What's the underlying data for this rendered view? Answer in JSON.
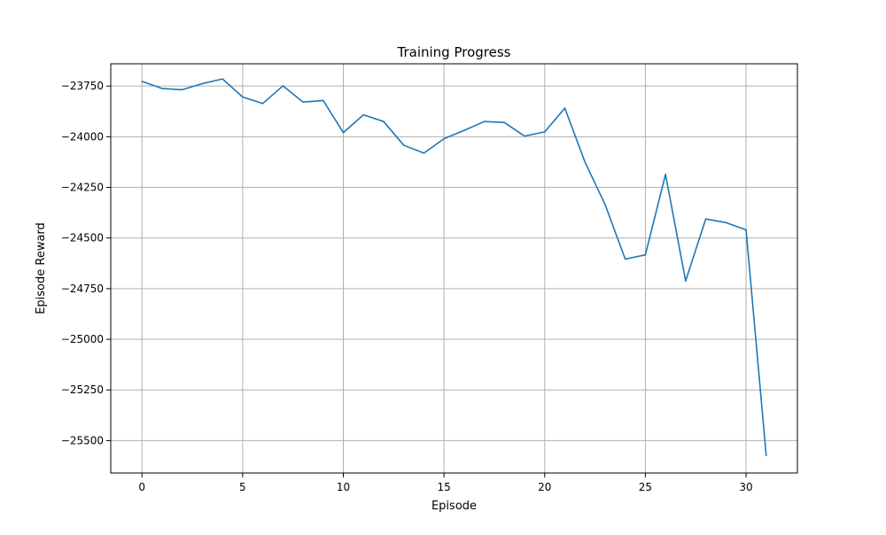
{
  "chart_data": {
    "type": "line",
    "title": "Training Progress",
    "xlabel": "Episode",
    "ylabel": "Episode Reward",
    "xlim": [
      -1.55,
      32.55
    ],
    "ylim": [
      -25660,
      -23640
    ],
    "xticks": [
      0,
      5,
      10,
      15,
      20,
      25,
      30
    ],
    "yticks": [
      -25500,
      -25250,
      -25000,
      -24750,
      -24500,
      -24250,
      -24000,
      -23750
    ],
    "grid": true,
    "line_color": "#1f77b4",
    "series": [
      {
        "x": [
          0,
          1,
          2,
          3,
          4,
          5,
          6,
          7,
          8,
          9,
          10,
          11,
          12,
          13,
          14,
          15,
          16,
          17,
          18,
          19,
          20,
          21,
          22,
          23,
          24,
          25,
          26,
          27,
          28,
          29,
          30,
          31
        ],
        "values": [
          -23727,
          -23762,
          -23768,
          -23738,
          -23715,
          -23804,
          -23836,
          -23749,
          -23829,
          -23821,
          -23980,
          -23892,
          -23925,
          -24042,
          -24081,
          -24010,
          -23969,
          -23925,
          -23930,
          -23997,
          -23976,
          -23859,
          -24125,
          -24335,
          -24604,
          -24583,
          -24186,
          -24712,
          -24406,
          -24424,
          -24460,
          -25573
        ]
      }
    ]
  }
}
